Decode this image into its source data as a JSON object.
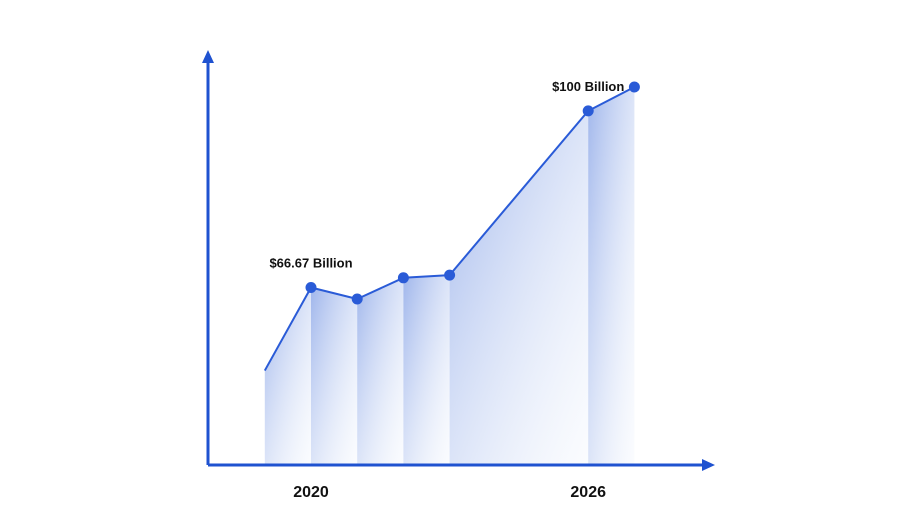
{
  "chart_data": {
    "type": "area",
    "title": "",
    "xlabel": "",
    "ylabel": "",
    "x_ticks": [
      "2020",
      "2026"
    ],
    "series": [
      {
        "x": [
          2019,
          2020,
          2021,
          2022,
          2023,
          2026,
          2027
        ],
        "values": [
          51,
          66.67,
          64.5,
          68.5,
          69,
          100,
          104.5
        ]
      }
    ],
    "annotations": [
      {
        "x": 2020,
        "label": "$66.67 Billion"
      },
      {
        "x": 2026,
        "label": "$100 Billion"
      }
    ],
    "ylim": [
      35,
      110
    ],
    "grid": false,
    "legend": "none",
    "colors": {
      "line": "#2a5bd7",
      "axis": "#1f52d0",
      "fill_top": "#8fa9e8",
      "fill_bottom": "#eef3fc"
    }
  }
}
